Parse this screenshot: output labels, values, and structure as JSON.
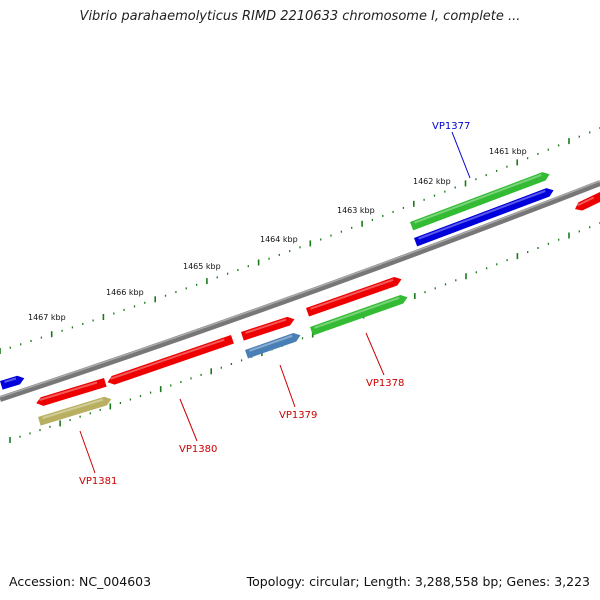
{
  "title": "Vibrio parahaemolyticus RIMD 2210633 chromosome I, complete ...",
  "footer": {
    "accession": "Accession: NC_004603",
    "topology": "Topology: circular; Length: 3,288,558 bp; Genes: 3,223"
  },
  "kbp_labels": [
    "1461 kbp",
    "1462 kbp",
    "1463 kbp",
    "1464 kbp",
    "1465 kbp",
    "1466 kbp",
    "1467 kbp"
  ],
  "gene_labels": [
    {
      "name": "VP1377",
      "color": "#0000cc"
    },
    {
      "name": "VP1378",
      "color": "#cc0000"
    },
    {
      "name": "VP1379",
      "color": "#cc0000"
    },
    {
      "name": "VP1380",
      "color": "#cc0000"
    },
    {
      "name": "VP1381",
      "color": "#cc0000"
    }
  ],
  "colors": {
    "backbone": "#777777",
    "red_gene": "#ee0000",
    "green_gene": "#33bb33",
    "blue_gene": "#0000dd",
    "steel_gene": "#4a7fb5",
    "khaki_gene": "#b8b060",
    "tick_color": "#1a7a1a"
  }
}
